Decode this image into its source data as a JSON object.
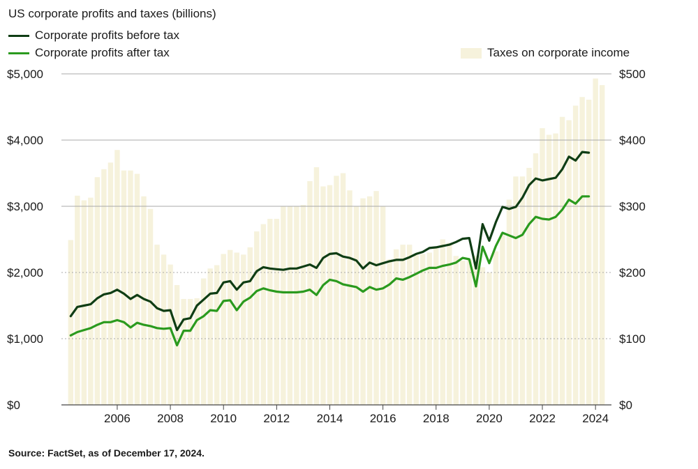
{
  "title": "US corporate profits and taxes (billions)",
  "legend": {
    "before_tax": "Corporate profits before tax",
    "after_tax": "Corporate profits after tax",
    "taxes": "Taxes on corporate income"
  },
  "source": "Source: FactSet, as of December 17, 2024.",
  "colors": {
    "before_tax": "#0f3d14",
    "after_tax": "#2a9a1e",
    "taxes": "#f6f2dc",
    "grid": "#a8a8a8"
  },
  "chart_data": {
    "type": "bar+line",
    "title": "US corporate profits and taxes (billions)",
    "x_start": 2004.25,
    "x_step": 0.25,
    "xlim": [
      2003.9,
      2024.6
    ],
    "x_ticks": [
      2006,
      2008,
      2010,
      2012,
      2014,
      2016,
      2018,
      2020,
      2022,
      2024
    ],
    "x_tick_labels": [
      "2006",
      "2008",
      "2010",
      "2012",
      "2014",
      "2016",
      "2018",
      "2020",
      "2022",
      "2024"
    ],
    "y_left": {
      "lim": [
        0,
        5000
      ],
      "ticks": [
        0,
        1000,
        2000,
        3000,
        4000,
        5000
      ],
      "tick_labels": [
        "$0",
        "$1,000",
        "$2,000",
        "$3,000",
        "$4,000",
        "$5,000"
      ]
    },
    "y_right": {
      "lim": [
        0,
        500
      ],
      "ticks": [
        0,
        100,
        200,
        300,
        400,
        500
      ],
      "tick_labels": [
        "$0",
        "$100",
        "$200",
        "$300",
        "$400",
        "$500"
      ]
    },
    "series": [
      {
        "name": "Taxes on corporate income",
        "axis": "right",
        "kind": "bar",
        "values": [
          249,
          316,
          309,
          313,
          344,
          356,
          366,
          385,
          354,
          354,
          349,
          315,
          296,
          242,
          227,
          212,
          181,
          160,
          160,
          161,
          191,
          206,
          211,
          228,
          234,
          230,
          227,
          238,
          262,
          273,
          281,
          281,
          300,
          300,
          300,
          302,
          338,
          359,
          330,
          332,
          346,
          350,
          324,
          300,
          312,
          315,
          323,
          300,
          220,
          235,
          242,
          242,
          226,
          228,
          230,
          238,
          250,
          245,
          225,
          218,
          220,
          225,
          208,
          200,
          232,
          260,
          310,
          345,
          345,
          358,
          380,
          418,
          408,
          410,
          435,
          430,
          452,
          465,
          461,
          493,
          483
        ]
      },
      {
        "name": "Corporate profits before tax",
        "axis": "left",
        "kind": "line",
        "values": [
          1340,
          1480,
          1500,
          1520,
          1610,
          1670,
          1690,
          1740,
          1680,
          1600,
          1660,
          1600,
          1560,
          1460,
          1420,
          1430,
          1130,
          1290,
          1310,
          1500,
          1590,
          1680,
          1690,
          1850,
          1870,
          1740,
          1850,
          1870,
          2020,
          2080,
          2060,
          2050,
          2040,
          2060,
          2060,
          2090,
          2120,
          2070,
          2220,
          2280,
          2290,
          2240,
          2220,
          2180,
          2060,
          2150,
          2110,
          2140,
          2170,
          2190,
          2190,
          2230,
          2280,
          2310,
          2370,
          2380,
          2400,
          2420,
          2460,
          2510,
          2520,
          2060,
          2730,
          2480,
          2760,
          2990,
          2960,
          2990,
          3130,
          3320,
          3420,
          3390,
          3410,
          3430,
          3560,
          3750,
          3690,
          3820,
          3810
        ]
      },
      {
        "name": "Corporate profits after tax",
        "axis": "left",
        "kind": "line",
        "values": [
          1050,
          1100,
          1130,
          1160,
          1210,
          1250,
          1250,
          1280,
          1250,
          1170,
          1240,
          1210,
          1190,
          1160,
          1150,
          1160,
          900,
          1120,
          1120,
          1280,
          1340,
          1430,
          1420,
          1570,
          1580,
          1430,
          1560,
          1620,
          1720,
          1760,
          1730,
          1710,
          1700,
          1700,
          1700,
          1710,
          1740,
          1660,
          1810,
          1890,
          1870,
          1820,
          1800,
          1780,
          1710,
          1780,
          1740,
          1760,
          1820,
          1910,
          1890,
          1930,
          1980,
          2030,
          2070,
          2070,
          2100,
          2120,
          2150,
          2220,
          2200,
          1790,
          2390,
          2140,
          2400,
          2600,
          2560,
          2520,
          2570,
          2730,
          2840,
          2810,
          2800,
          2840,
          2950,
          3100,
          3040,
          3150,
          3150
        ]
      }
    ]
  }
}
